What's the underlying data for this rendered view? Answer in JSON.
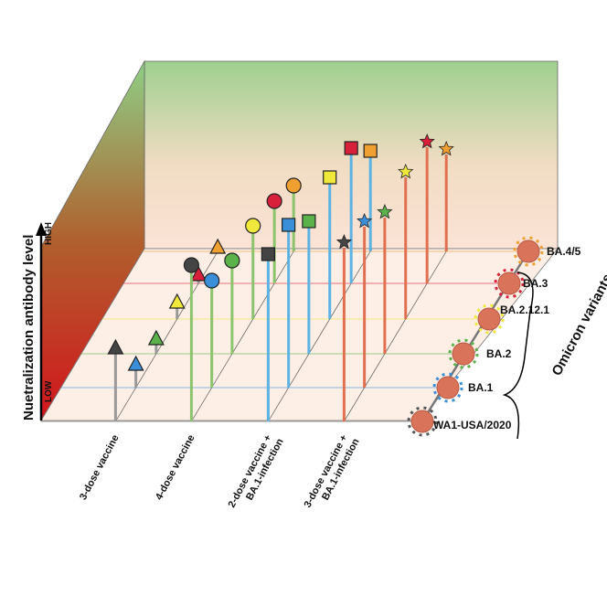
{
  "y_axis": {
    "label": "Nuetralization antibody level",
    "high": "HIGH",
    "low": "LOW"
  },
  "groups": [
    {
      "lines": [
        "3-dose vaccine"
      ]
    },
    {
      "lines": [
        "4-dose vaccine"
      ]
    },
    {
      "lines": [
        "2-dose vaccine +",
        "BA.1-infection"
      ]
    },
    {
      "lines": [
        "3-dose vaccine +",
        "BA.1-infection"
      ]
    }
  ],
  "variants": [
    "WA1-USA/2020",
    "BA.1",
    "BA.2",
    "BA.2.12.1",
    "BA.3",
    "BA.4/5"
  ],
  "variant_group_label": "Omicron variants"
}
